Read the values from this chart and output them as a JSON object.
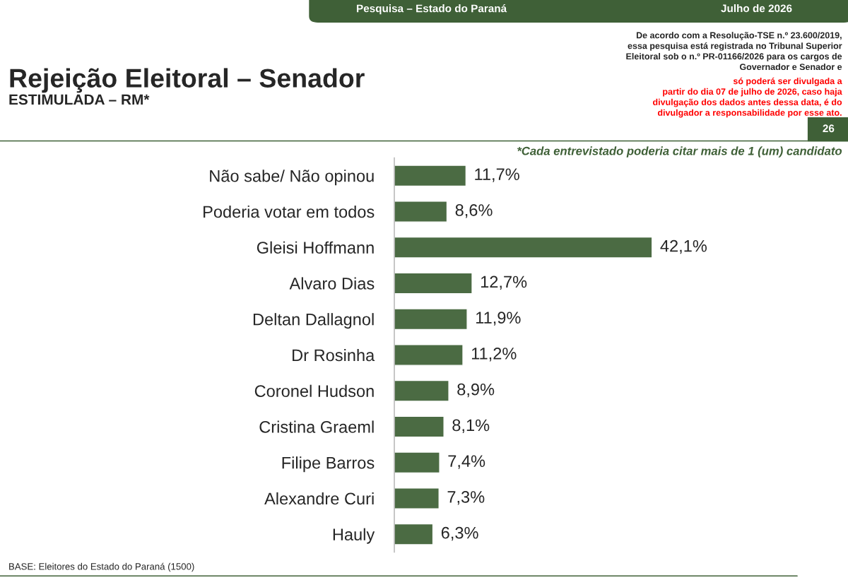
{
  "chart_data": {
    "type": "bar",
    "orientation": "horizontal",
    "title": "Rejeição Eleitoral – Senador",
    "subtitle": "ESTIMULADA – RM*",
    "categories": [
      "Não sabe/ Não opinou",
      "Poderia votar em todos",
      "Gleisi Hoffmann",
      "Alvaro Dias",
      "Deltan Dallagnol",
      "Dr Rosinha",
      "Coronel Hudson",
      "Cristina Graeml",
      "Filipe Barros",
      "Alexandre Curi",
      "Hauly"
    ],
    "values": [
      11.7,
      8.6,
      42.1,
      12.7,
      11.9,
      11.2,
      8.9,
      8.1,
      7.4,
      7.3,
      6.3
    ],
    "value_labels": [
      "11,7%",
      "8,6%",
      "42,1%",
      "12,7%",
      "11,9%",
      "11,2%",
      "8,9%",
      "8,1%",
      "7,4%",
      "7,3%",
      "6,3%"
    ],
    "color": "#4b6b43",
    "tick_labels": "y",
    "grid": false,
    "legend": false,
    "annotations": [
      "Pesquisa – Estado do Paraná",
      "Julho de 2026",
      "De acordo com a Resolução-TSE n.º 23.600/2019,\nessa pesquisa está registrada no Tribunal Superior\nEleitoral sob o n.º PR-01166/2026 para os cargos de\nGovernador e Senador e",
      "só poderá ser divulgada a\npartir do dia 07 de julho de 2026, caso haja\ndivulgação dos dados antes dessa data, é do\ndivulgador a responsabilidade por esse ato.",
      "26",
      "*Cada entrevistado poderia citar mais de 1 (um) candidato",
      "BASE: Eleitores do Estado do Paraná (1500)"
    ]
  }
}
